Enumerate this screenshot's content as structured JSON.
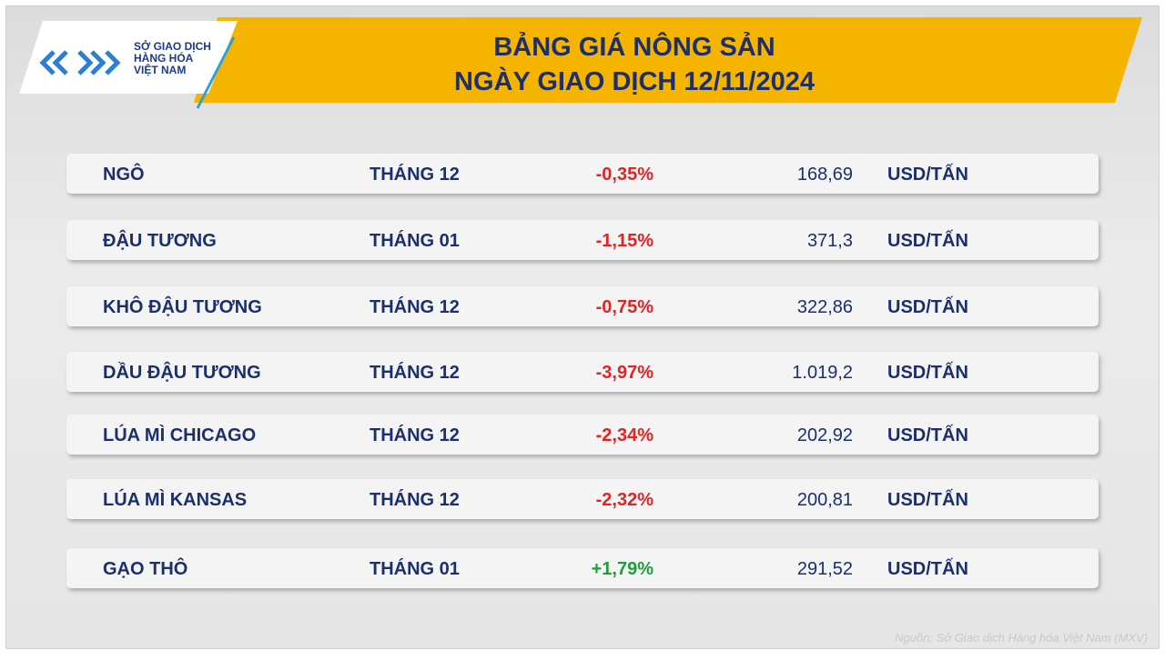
{
  "logo": {
    "lines": [
      "SỞ GIAO DỊCH",
      "HÀNG HÓA",
      "VIỆT NAM"
    ]
  },
  "header": {
    "title": [
      "BẢNG GIÁ NÔNG SẢN",
      "NGÀY GIAO DỊCH 12/11/2024"
    ]
  },
  "table": {
    "rows": [
      [
        "NGÔ",
        "THÁNG 12",
        "-0,35%",
        "168,69",
        "USD/TẤN"
      ],
      [
        "ĐẬU TƯƠNG",
        "THÁNG 01",
        "-1,15%",
        "371,3",
        "USD/TẤN"
      ],
      [
        "KHÔ ĐẬU TƯƠNG",
        "THÁNG 12",
        "-0,75%",
        "322,86",
        "USD/TẤN"
      ],
      [
        "DẦU ĐẬU TƯƠNG",
        "THÁNG 12",
        "-3,97%",
        "1.019,2",
        "USD/TẤN"
      ],
      [
        "LÚA MÌ CHICAGO",
        "THÁNG 12",
        "-2,34%",
        "202,92",
        "USD/TẤN"
      ],
      [
        "LÚA MÌ KANSAS",
        "THÁNG 12",
        "-2,32%",
        "200,81",
        "USD/TẤN"
      ],
      [
        "GẠO THÔ",
        "THÁNG 01",
        "+1,79%",
        "291,52",
        "USD/TẤN"
      ]
    ]
  },
  "source": "Nguồn: Sở Giao dịch Hàng hóa Việt Nam (MXV)"
}
